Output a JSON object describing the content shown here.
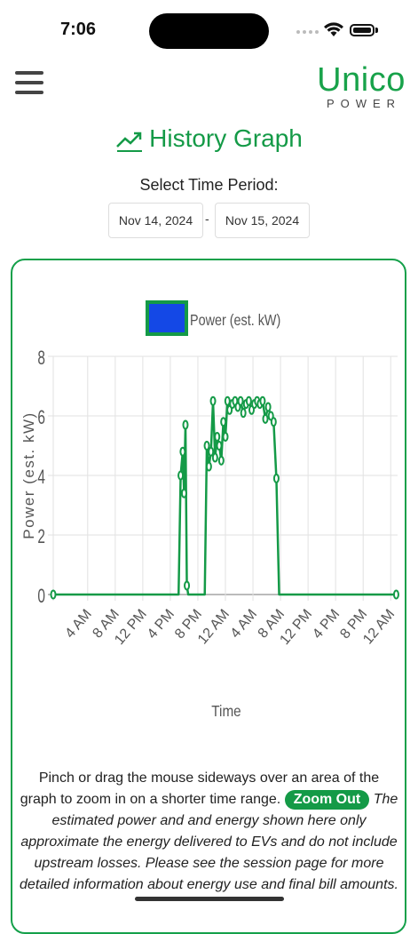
{
  "status_bar": {
    "time": "7:06"
  },
  "header": {
    "menu_icon": "hamburger-menu-icon",
    "logo_top": "Unico",
    "logo_bottom": "POWER",
    "brand_color": "#18a24a"
  },
  "title": {
    "icon": "trending-up-icon",
    "text": "History Graph"
  },
  "period": {
    "label": "Select Time Period:",
    "start": "Nov 14, 2024",
    "separator": "-",
    "end": "Nov 15, 2024"
  },
  "chart_data": {
    "type": "line",
    "legend": {
      "label": "Power (est. kW)",
      "fill": "#1448e6",
      "border": "#149a47",
      "placement": "top-center"
    },
    "ylabel": "Power (est. kW)",
    "xlabel": "Time",
    "ylim": [
      0,
      8
    ],
    "y_ticks": [
      "0",
      "2",
      "4",
      "6",
      "8"
    ],
    "x_ticks": [
      "4 AM",
      "8 AM",
      "12 PM",
      "4 PM",
      "8 PM",
      "12 AM",
      "4 AM",
      "8 AM",
      "12 PM",
      "4 PM",
      "8 PM",
      "12 AM"
    ],
    "x_range_hours": [
      -1.0,
      49.0
    ],
    "grid": true,
    "series": [
      {
        "name": "Power (est. kW)",
        "color": "#149a47",
        "x_hours": [
          -1.0,
          17.2,
          17.5,
          17.8,
          18.0,
          18.2,
          18.4,
          18.6,
          18.8,
          19.0,
          19.3,
          21.0,
          21.3,
          21.6,
          21.9,
          22.2,
          22.5,
          22.8,
          23.1,
          23.4,
          23.7,
          24.0,
          24.3,
          24.6,
          25.0,
          25.4,
          25.8,
          26.2,
          26.6,
          27.0,
          27.4,
          27.8,
          28.2,
          28.6,
          29.0,
          29.4,
          29.8,
          30.2,
          30.6,
          31.0,
          31.4,
          31.8,
          32.2,
          32.6,
          33.0,
          33.4,
          33.8,
          48.8
        ],
        "values": [
          0.0,
          0.0,
          4.0,
          4.8,
          3.4,
          5.7,
          0.3,
          0.0,
          0.0,
          0.0,
          0.0,
          0.0,
          5.0,
          4.3,
          4.8,
          6.5,
          4.6,
          5.3,
          5.0,
          4.5,
          5.8,
          5.3,
          6.5,
          6.2,
          6.4,
          6.5,
          6.3,
          6.5,
          6.1,
          6.4,
          6.5,
          6.2,
          6.4,
          6.5,
          6.4,
          6.5,
          5.9,
          6.3,
          6.0,
          5.8,
          3.9,
          0.0,
          0.0,
          0.0,
          0.0,
          0.0,
          0.0,
          0.0
        ]
      }
    ]
  },
  "info": {
    "instruction": "Pinch or drag the mouse sideways over an area of the graph to zoom in on a shorter time range.",
    "zoom_label": "Zoom Out",
    "disclaimer": "The estimated power and and energy shown here only approximate the energy delivered to EVs and do not include upstream losses. Please see the session page for more detailed information about energy use and final bill amounts."
  }
}
